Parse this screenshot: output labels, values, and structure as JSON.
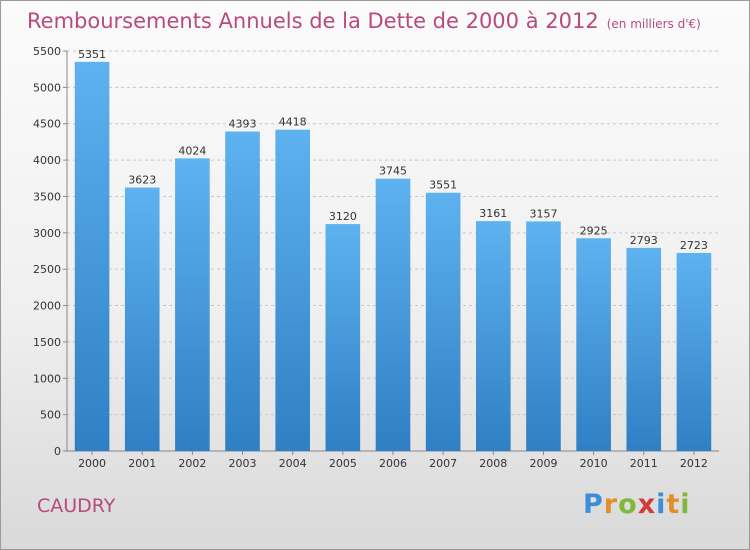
{
  "chart_data": {
    "type": "bar",
    "title": "Remboursements Annuels de la Dette de 2000 à 2012",
    "subtitle": "(en milliers d'€)",
    "categories": [
      "2000",
      "2001",
      "2002",
      "2003",
      "2004",
      "2005",
      "2006",
      "2007",
      "2008",
      "2009",
      "2010",
      "2011",
      "2012"
    ],
    "values": [
      5351,
      3623,
      4024,
      4393,
      4418,
      3120,
      3745,
      3551,
      3161,
      3157,
      2925,
      2793,
      2723
    ],
    "ylim": [
      0,
      5500
    ],
    "yticks": [
      0,
      500,
      1000,
      1500,
      2000,
      2500,
      3000,
      3500,
      4000,
      4500,
      5000,
      5500
    ],
    "grid": true,
    "bar_color": "#4a9fe0"
  },
  "footer": {
    "city": "CAUDRY",
    "logo_text": "Proxiti"
  }
}
